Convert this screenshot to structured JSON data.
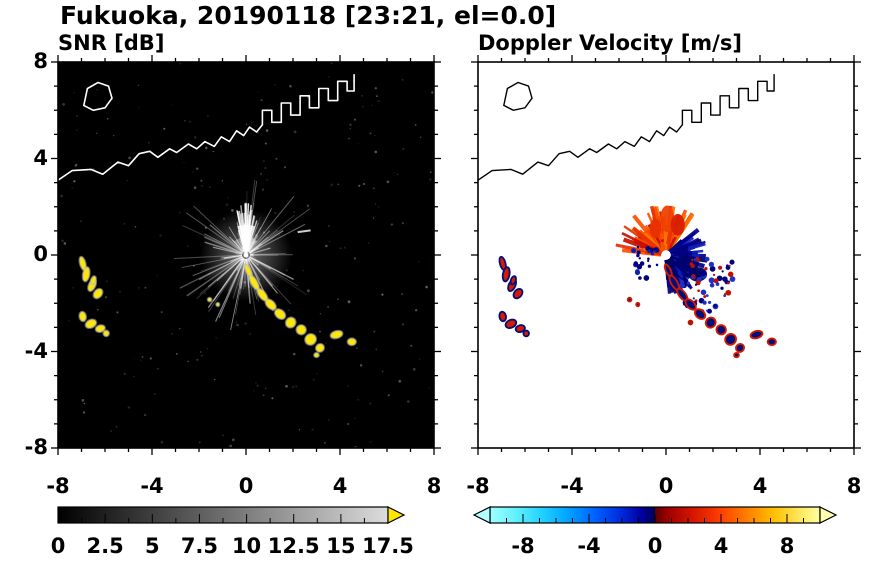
{
  "title": "Fukuoka, 20190118 [23:21, el=0.0]",
  "panels": [
    {
      "title": "SNR [dB]"
    },
    {
      "title": "Doppler Velocity [m/s]"
    }
  ],
  "chart_data": [
    {
      "type": "heatmap",
      "title": "SNR [dB]",
      "xlabel": "",
      "ylabel": "",
      "xlim": [
        -8,
        8
      ],
      "ylim": [
        -8,
        8
      ],
      "xticks": [
        -8,
        -4,
        0,
        4,
        8
      ],
      "yticks": [
        8,
        4,
        0,
        -4,
        -8
      ],
      "minor_tick_step": 1,
      "colorbar": {
        "range": [
          0,
          17.5
        ],
        "ticks": [
          0,
          2.5,
          5,
          7.5,
          10,
          12.5,
          15,
          17.5
        ],
        "tick_step": 1.25,
        "major_every": 2.5,
        "stops": [
          [
            0,
            "#000000"
          ],
          [
            1,
            "#dcdcdc"
          ]
        ],
        "over_arrow_color": "#ffe600"
      },
      "features": {
        "background": "#000000",
        "coastline_color": "#ffffff",
        "radar_center": [
          0,
          0
        ],
        "clutter_streaks": {
          "seed": 7,
          "count": 120,
          "rmin": 0.3,
          "rmax": 3.2
        },
        "bright_fan": {
          "angle_min": 72,
          "angle_max": 108,
          "radius_px": 30
        },
        "long_streaks": {
          "seed": 21,
          "count": 9,
          "rmin": 2.2,
          "rmax": 3.9
        },
        "noise_dots": {
          "seed": 3,
          "count": 230
        },
        "echo_color": "#ffe800",
        "echoes": [
          [
            -6.95,
            -0.35,
            0.12,
            0.28,
            -15
          ],
          [
            -6.8,
            -0.8,
            0.14,
            0.3,
            10
          ],
          [
            -6.55,
            -1.25,
            0.14,
            0.26,
            25
          ],
          [
            -6.3,
            -1.6,
            0.16,
            0.22,
            40
          ],
          [
            -6.5,
            -1.05,
            0.1,
            0.18,
            20
          ],
          [
            -6.95,
            -2.55,
            0.14,
            0.2,
            -10
          ],
          [
            -6.6,
            -2.85,
            0.24,
            0.16,
            -25
          ],
          [
            -6.2,
            -3.05,
            0.2,
            0.14,
            -15
          ],
          [
            -5.95,
            -3.25,
            0.12,
            0.12,
            0
          ],
          [
            -1.55,
            -1.85,
            0.08,
            0.08,
            0
          ],
          [
            -1.2,
            -2.05,
            0.07,
            0.07,
            0
          ],
          [
            0.1,
            -0.65,
            0.1,
            0.28,
            -25
          ],
          [
            0.35,
            -1.15,
            0.13,
            0.33,
            -30
          ],
          [
            0.7,
            -1.65,
            0.14,
            0.3,
            -38
          ],
          [
            1.05,
            -2.05,
            0.16,
            0.26,
            -45
          ],
          [
            1.45,
            -2.45,
            0.18,
            0.24,
            -50
          ],
          [
            1.9,
            -2.8,
            0.22,
            0.2,
            -55
          ],
          [
            2.35,
            -3.1,
            0.2,
            0.2,
            -50
          ],
          [
            2.75,
            -3.5,
            0.24,
            0.22,
            -45
          ],
          [
            3.15,
            -3.85,
            0.18,
            0.16,
            -40
          ],
          [
            3.0,
            -4.15,
            0.1,
            0.09,
            0
          ],
          [
            3.85,
            -3.3,
            0.26,
            0.15,
            -15
          ],
          [
            4.5,
            -3.6,
            0.18,
            0.14,
            0
          ]
        ],
        "coastline": [
          [
            -8,
            3.1
          ],
          [
            -7.4,
            3.5
          ],
          [
            -6.6,
            3.55
          ],
          [
            -6.1,
            3.35
          ],
          [
            -5.45,
            3.85
          ],
          [
            -5.0,
            3.7
          ],
          [
            -4.55,
            4.2
          ],
          [
            -4.1,
            4.3
          ],
          [
            -3.75,
            4.05
          ],
          [
            -3.25,
            4.4
          ],
          [
            -2.95,
            4.25
          ],
          [
            -2.45,
            4.6
          ],
          [
            -2.1,
            4.4
          ],
          [
            -1.75,
            4.7
          ],
          [
            -1.35,
            4.5
          ],
          [
            -1.05,
            4.9
          ],
          [
            -0.7,
            4.7
          ],
          [
            -0.4,
            5.15
          ],
          [
            -0.1,
            4.95
          ],
          [
            0.15,
            5.3
          ],
          [
            0.45,
            5.1
          ],
          [
            0.7,
            5.4
          ],
          [
            0.7,
            6.0
          ],
          [
            1.1,
            6.0
          ],
          [
            1.1,
            5.5
          ],
          [
            1.5,
            5.5
          ],
          [
            1.5,
            6.3
          ],
          [
            1.9,
            6.3
          ],
          [
            1.9,
            5.8
          ],
          [
            2.3,
            5.8
          ],
          [
            2.3,
            6.6
          ],
          [
            2.7,
            6.6
          ],
          [
            2.7,
            6.1
          ],
          [
            3.1,
            6.1
          ],
          [
            3.1,
            6.9
          ],
          [
            3.5,
            6.9
          ],
          [
            3.5,
            6.4
          ],
          [
            3.9,
            6.4
          ],
          [
            3.9,
            7.2
          ],
          [
            4.3,
            7.2
          ],
          [
            4.3,
            6.8
          ],
          [
            4.6,
            6.8
          ],
          [
            4.6,
            7.5
          ]
        ],
        "island": [
          [
            -6.9,
            6.2
          ],
          [
            -6.75,
            6.9
          ],
          [
            -6.3,
            7.15
          ],
          [
            -5.85,
            7.0
          ],
          [
            -5.7,
            6.5
          ],
          [
            -6.0,
            6.1
          ],
          [
            -6.5,
            6.0
          ]
        ]
      }
    },
    {
      "type": "heatmap",
      "title": "Doppler Velocity [m/s]",
      "xlabel": "",
      "ylabel": "",
      "xlim": [
        -8,
        8
      ],
      "ylim": [
        -8,
        8
      ],
      "xticks": [
        -8,
        -4,
        0,
        4,
        8
      ],
      "yticks": [
        8,
        4,
        0,
        -4,
        -8
      ],
      "minor_tick_step": 1,
      "colorbar": {
        "range": [
          -10,
          10
        ],
        "ticks": [
          -8,
          -4,
          0,
          4,
          8
        ],
        "tick_step": 1,
        "major_every": 4,
        "stops": [
          [
            0,
            "#a0ffff"
          ],
          [
            0.08,
            "#60f0ff"
          ],
          [
            0.16,
            "#20d0ff"
          ],
          [
            0.24,
            "#00a0ff"
          ],
          [
            0.32,
            "#0060ff"
          ],
          [
            0.4,
            "#0028d8"
          ],
          [
            0.46,
            "#0000a0"
          ],
          [
            0.499,
            "#000050"
          ],
          [
            0.501,
            "#600000"
          ],
          [
            0.54,
            "#a00000"
          ],
          [
            0.62,
            "#d81800"
          ],
          [
            0.7,
            "#ff4000"
          ],
          [
            0.78,
            "#ff8000"
          ],
          [
            0.86,
            "#ffc000"
          ],
          [
            0.94,
            "#ffe860"
          ],
          [
            1,
            "#ffffa0"
          ]
        ],
        "under_arrow_color": "#b0ffff",
        "over_arrow_color": "#ffffb0"
      },
      "features": {
        "background": "#ffffff",
        "coastline_color": "#000000",
        "fans": [
          {
            "seed": 11,
            "count": 150,
            "angle_min": 55,
            "angle_max": 178,
            "rmin": 0.3,
            "rmax": 2.2,
            "colors": [
              "#c81000",
              "#e83000",
              "#ff5000",
              "#ff7800"
            ]
          },
          {
            "seed": 5,
            "count": 160,
            "angle_min": -85,
            "angle_max": 45,
            "rmin": 0.25,
            "rmax": 1.8,
            "colors": [
              "#000060",
              "#000090",
              "#1020c0"
            ]
          }
        ],
        "blobs": [
          [
            0.05,
            1.5,
            0.3,
            0.55,
            "#f04000"
          ],
          [
            -0.45,
            1.1,
            0.25,
            0.4,
            "#e83000"
          ],
          [
            0.5,
            1.25,
            0.3,
            0.45,
            "#d82000"
          ],
          [
            0.9,
            -0.35,
            0.5,
            0.35,
            "#000070"
          ],
          [
            1.35,
            -0.8,
            0.4,
            0.3,
            "#000060"
          ],
          [
            0.6,
            0.15,
            0.35,
            0.22,
            "#000080"
          ]
        ],
        "specks": [
          {
            "seed": 9,
            "count": 70,
            "angle_min": -70,
            "angle_max": -5,
            "rmin": 1.1,
            "rmax": 3.1,
            "colors": [
              "#000080",
              "#2030c0",
              "#c01000"
            ]
          },
          {
            "seed": 13,
            "count": 26,
            "angle_min": 150,
            "angle_max": 235,
            "rmin": 0.4,
            "rmax": 1.5,
            "colors": [
              "#000080",
              "#1020b0"
            ]
          }
        ],
        "echo_fill": "#001078",
        "echo_stroke": "#d81800"
      }
    }
  ]
}
